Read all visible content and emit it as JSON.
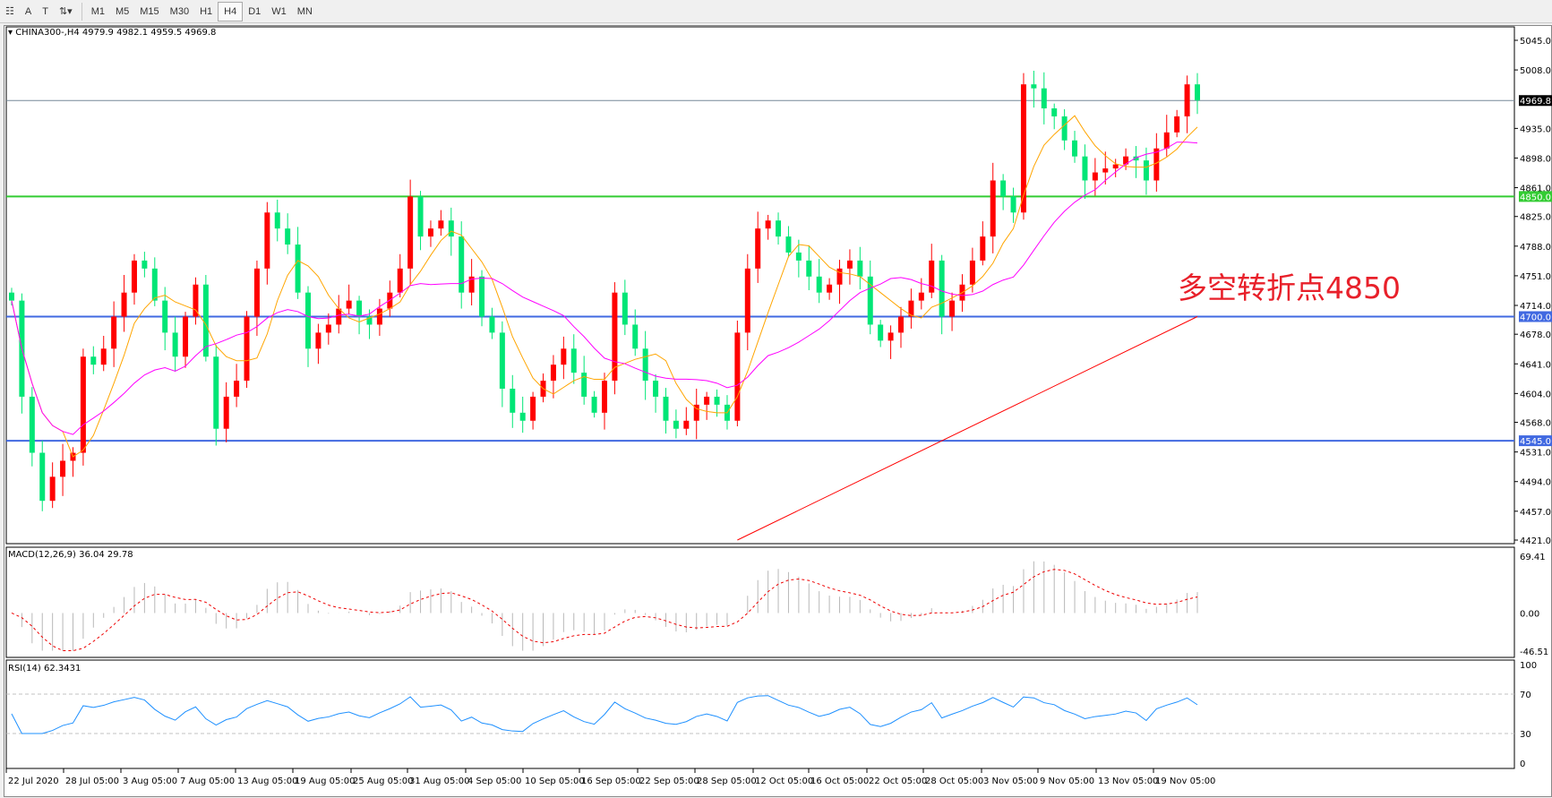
{
  "toolbar": {
    "timeframes": [
      "M1",
      "M5",
      "M15",
      "M30",
      "H1",
      "H4",
      "D1",
      "W1",
      "MN"
    ],
    "active": "H4"
  },
  "chart_data": {
    "type": "candlestick",
    "title": "CHINA300-,H4  4979.9 4982.1 4959.5 4969.8",
    "symbol": "CHINA300-",
    "timeframe": "H4",
    "last_ohlc": {
      "open": 4979.9,
      "high": 4982.1,
      "low": 4959.5,
      "close": 4969.8
    },
    "current_price": "4969.8",
    "ylim": [
      4421,
      5045
    ],
    "y_ticks": [
      "5045.0",
      "5008.0",
      "4969.8",
      "4935.0",
      "4898.0",
      "4861.0",
      "4850.0",
      "4825.0",
      "4788.0",
      "4751.0",
      "4714.0",
      "4700.0",
      "4678.0",
      "4641.0",
      "4604.0",
      "4568.0",
      "4545.0",
      "4531.0",
      "4494.0",
      "4457.0",
      "4421.0"
    ],
    "x_ticks": [
      "22 Jul 2020",
      "28 Jul 05:00",
      "3 Aug 05:00",
      "7 Aug 05:00",
      "13 Aug 05:00",
      "19 Aug 05:00",
      "25 Aug 05:00",
      "31 Aug 05:00",
      "4 Sep 05:00",
      "10 Sep 05:00",
      "16 Sep 05:00",
      "22 Sep 05:00",
      "28 Sep 05:00",
      "12 Oct 05:00",
      "16 Oct 05:00",
      "22 Oct 05:00",
      "28 Oct 05:00",
      "3 Nov 05:00",
      "9 Nov 05:00",
      "13 Nov 05:00",
      "19 Nov 05:00"
    ],
    "closes": [
      4720,
      4600,
      4530,
      4470,
      4500,
      4520,
      4530,
      4650,
      4640,
      4660,
      4700,
      4730,
      4770,
      4760,
      4720,
      4680,
      4650,
      4700,
      4740,
      4650,
      4560,
      4600,
      4620,
      4700,
      4760,
      4830,
      4810,
      4790,
      4730,
      4660,
      4680,
      4690,
      4710,
      4720,
      4700,
      4690,
      4710,
      4730,
      4760,
      4850,
      4800,
      4810,
      4820,
      4800,
      4730,
      4750,
      4700,
      4680,
      4610,
      4580,
      4570,
      4600,
      4620,
      4640,
      4660,
      4630,
      4600,
      4580,
      4620,
      4730,
      4690,
      4660,
      4620,
      4600,
      4570,
      4560,
      4570,
      4590,
      4600,
      4590,
      4570,
      4680,
      4760,
      4810,
      4820,
      4800,
      4780,
      4770,
      4750,
      4730,
      4740,
      4760,
      4770,
      4750,
      4690,
      4670,
      4680,
      4700,
      4720,
      4730,
      4770,
      4700,
      4720,
      4740,
      4770,
      4800,
      4870,
      4850,
      4830,
      4990,
      4985,
      4960,
      4950,
      4920,
      4900,
      4870,
      4880,
      4885,
      4890,
      4900,
      4895,
      4870,
      4910,
      4930,
      4950,
      4990,
      4970
    ],
    "colors": {
      "up": "#ff0000",
      "down": "#00e676",
      "ma_fast": "#ffa500",
      "ma_mid": "#ff00ff",
      "ma_slow": "#ff0000"
    },
    "ma_slow_line": {
      "start": 4421,
      "end": 4700
    },
    "horizontal_levels": [
      {
        "value": 4850,
        "label": "4850.0",
        "color": "#33cc33"
      },
      {
        "value": 4700,
        "label": "4700.0",
        "color": "#4169e1"
      },
      {
        "value": 4545,
        "label": "4545.0",
        "color": "#4169e1"
      }
    ],
    "annotation": "多空转折点4850",
    "macd": {
      "label": "MACD(12,26,9) 36.04 29.78",
      "ticks": [
        "69.41",
        "0.00",
        "-46.51"
      ],
      "ylim": [
        -46.51,
        69.41
      ]
    },
    "rsi": {
      "label": "RSI(14) 62.3431",
      "ticks": [
        "100",
        "70",
        "30",
        "0"
      ],
      "levels": [
        70,
        30
      ],
      "ylim": [
        0,
        100
      ],
      "color": "#1e90ff"
    }
  }
}
